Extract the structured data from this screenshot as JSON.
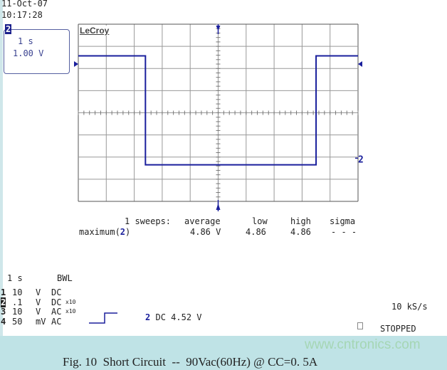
{
  "header": {
    "date": "11-Oct-07",
    "time": "10:17:28"
  },
  "channel_box": {
    "channel": "2",
    "timebase": "1 s",
    "scale": "1.00 V"
  },
  "logo": "LeCroy",
  "chart_data": {
    "type": "line",
    "grid": true,
    "divisions": {
      "x": 10,
      "y": 8
    },
    "xlim": [
      0,
      10
    ],
    "ylim": [
      -4,
      4
    ],
    "trace_color": "#1a1f9c",
    "series": [
      {
        "x": [
          0,
          2.4,
          2.4,
          8.5,
          8.5,
          10
        ],
        "y": [
          2.57,
          2.57,
          -2.35,
          -2.35,
          2.57,
          2.57
        ]
      }
    ],
    "ground_marker": "2"
  },
  "measure": {
    "header": [
      "1 sweeps:",
      "average",
      "low",
      "high",
      "sigma"
    ],
    "row": {
      "label": "maximum(",
      "ch": "2",
      "close": ")",
      "average": "4.86 V",
      "low": "4.86",
      "high": "4.86",
      "sigma": "- - -"
    }
  },
  "settings": {
    "timebase": "1 s",
    "bwl": "BWL",
    "channels": [
      {
        "n": "1",
        "volts": "10",
        "unit": "V",
        "coupling": "DC",
        "probe": ""
      },
      {
        "n": "2",
        "volts": ".1",
        "unit": "V",
        "coupling": "DC",
        "probe": "x10"
      },
      {
        "n": "3",
        "volts": "10",
        "unit": "V",
        "coupling": "AC",
        "probe": "x10"
      },
      {
        "n": "4",
        "volts": "50",
        "unit": "mV",
        "coupling": "AC",
        "probe": ""
      }
    ]
  },
  "trigger": {
    "ch": "2",
    "text": "DC 4.52 V"
  },
  "sample_rate": "10 kS/s",
  "status": "STOPPED",
  "caption": "Fig. 10  Short Circuit  --  90Vac(60Hz) @ CC=0. 5A",
  "watermark": "www.cntronics.com"
}
